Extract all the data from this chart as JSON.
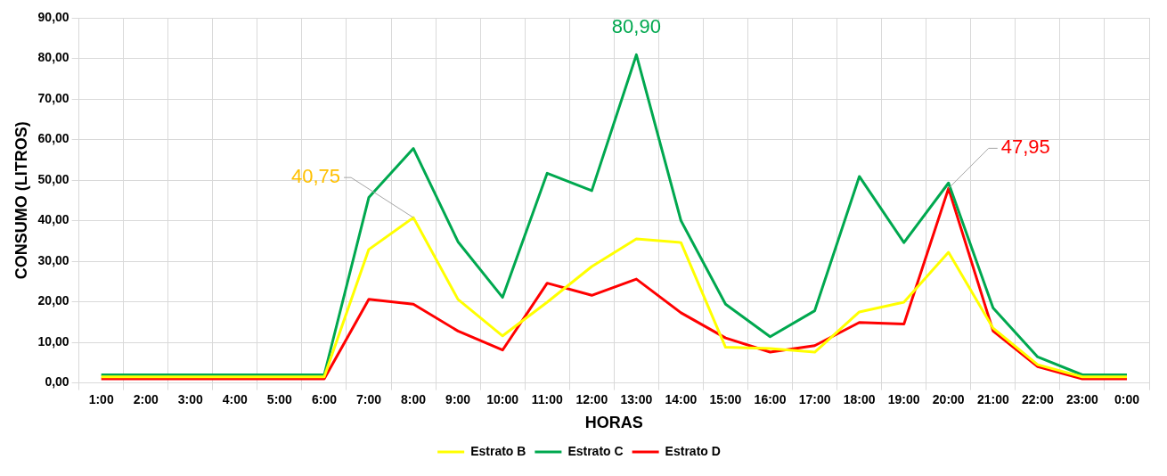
{
  "chart_data": {
    "type": "line",
    "xlabel": "HORAS",
    "ylabel": "CONSUMO (LITROS)",
    "categories": [
      "1:00",
      "2:00",
      "3:00",
      "4:00",
      "5:00",
      "6:00",
      "7:00",
      "8:00",
      "9:00",
      "10:00",
      "11:00",
      "12:00",
      "13:00",
      "14:00",
      "15:00",
      "16:00",
      "17:00",
      "18:00",
      "19:00",
      "20:00",
      "21:00",
      "22:00",
      "23:00",
      "0:00"
    ],
    "series": [
      {
        "name": "Estrato B",
        "color": "#ffff00",
        "values": [
          1.5,
          1.5,
          1.5,
          1.5,
          1.5,
          1.5,
          32.9,
          40.75,
          20.6,
          11.6,
          19.9,
          28.7,
          35.5,
          34.6,
          8.8,
          8.5,
          7.6,
          17.5,
          19.9,
          32.2,
          13.5,
          4.5,
          1.5,
          1.5
        ]
      },
      {
        "name": "Estrato C",
        "color": "#00a84f",
        "values": [
          2,
          2,
          2,
          2,
          2,
          2,
          45.7,
          57.8,
          34.8,
          21.1,
          51.7,
          47.4,
          80.9,
          40,
          19.4,
          11.4,
          17.8,
          50.9,
          34.6,
          49.3,
          18.5,
          6.4,
          2,
          2
        ]
      },
      {
        "name": "Estrato D",
        "color": "#ff0000",
        "values": [
          1,
          1,
          1,
          1,
          1,
          1,
          20.6,
          19.4,
          12.8,
          8.1,
          24.6,
          21.6,
          25.6,
          17.3,
          11.1,
          7.6,
          9.2,
          14.9,
          14.5,
          47.95,
          12.8,
          4,
          1,
          1
        ]
      }
    ],
    "ylim": [
      0,
      90
    ],
    "yticks": [
      {
        "value": 0,
        "label": "0,00"
      },
      {
        "value": 10,
        "label": "10,00"
      },
      {
        "value": 20,
        "label": "20,00"
      },
      {
        "value": 30,
        "label": "30,00"
      },
      {
        "value": 40,
        "label": "40,00"
      },
      {
        "value": 50,
        "label": "50,00"
      },
      {
        "value": 60,
        "label": "60,00"
      },
      {
        "value": 70,
        "label": "70,00"
      },
      {
        "value": 80,
        "label": "80,00"
      },
      {
        "value": 90,
        "label": "90,00"
      }
    ],
    "annotations": [
      {
        "text": "40,75",
        "x": "8:00",
        "y": 40.75
      },
      {
        "text": "80,90",
        "x": "13:00",
        "y": 80.9
      },
      {
        "text": "47,95",
        "x": "20:00",
        "y": 47.95
      }
    ],
    "grid": true,
    "legend": "bottom",
    "marker": "none",
    "line_style": "solid"
  }
}
